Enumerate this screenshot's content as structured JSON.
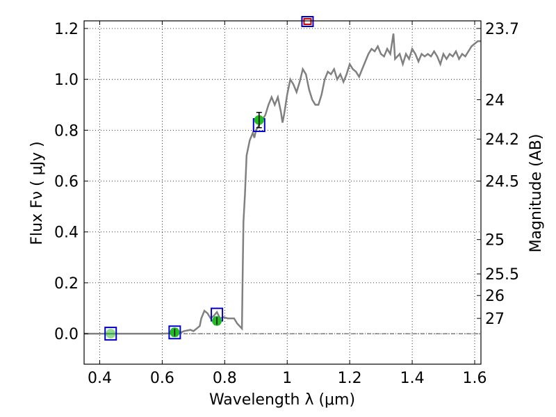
{
  "chart_data": {
    "type": "line",
    "xlabel": "Wavelength  λ (μm)",
    "ylabel": "Flux  Fν  ( μJy )",
    "y2label": "Magnitude (AB)",
    "xlim": [
      0.35,
      1.62
    ],
    "ylim": [
      -0.12,
      1.23
    ],
    "grid": true,
    "colors": {
      "spectrum": "#808080",
      "model_box": "#0000cc",
      "model_box_upper": "#cc0000",
      "observed": "#22bb22",
      "zero_line": "#000000"
    },
    "x_ticks": [
      {
        "value": 0.4,
        "label": "0.4"
      },
      {
        "value": 0.6,
        "label": "0.6"
      },
      {
        "value": 0.8,
        "label": "0.8"
      },
      {
        "value": 1.0,
        "label": "1"
      },
      {
        "value": 1.2,
        "label": "1.2"
      },
      {
        "value": 1.4,
        "label": "1.4"
      },
      {
        "value": 1.6,
        "label": "1.6"
      }
    ],
    "y_ticks": [
      {
        "value": 0.0,
        "label": "0.0"
      },
      {
        "value": 0.2,
        "label": "0.2"
      },
      {
        "value": 0.4,
        "label": "0.4"
      },
      {
        "value": 0.6,
        "label": "0.6"
      },
      {
        "value": 0.8,
        "label": "0.8"
      },
      {
        "value": 1.0,
        "label": "1.0"
      },
      {
        "value": 1.2,
        "label": "1.2"
      }
    ],
    "y2_ticks": [
      {
        "flux": 1.2,
        "label": "23.7"
      },
      {
        "flux": 0.92,
        "label": "24"
      },
      {
        "flux": 0.765,
        "label": "24.2"
      },
      {
        "flux": 0.6,
        "label": "24.5"
      },
      {
        "flux": 0.37,
        "label": "25"
      },
      {
        "flux": 0.235,
        "label": "25.5"
      },
      {
        "flux": 0.15,
        "label": "26"
      },
      {
        "flux": 0.06,
        "label": "27"
      }
    ],
    "series": [
      {
        "type": "line",
        "points": [
          [
            0.35,
            0.0
          ],
          [
            0.6,
            0.0
          ],
          [
            0.64,
            0.002
          ],
          [
            0.66,
            0.005
          ],
          [
            0.67,
            0.01
          ],
          [
            0.69,
            0.015
          ],
          [
            0.7,
            0.01
          ],
          [
            0.71,
            0.02
          ],
          [
            0.72,
            0.03
          ],
          [
            0.725,
            0.06
          ],
          [
            0.735,
            0.09
          ],
          [
            0.745,
            0.08
          ],
          [
            0.755,
            0.06
          ],
          [
            0.765,
            0.07
          ],
          [
            0.775,
            0.085
          ],
          [
            0.785,
            0.06
          ],
          [
            0.795,
            0.065
          ],
          [
            0.81,
            0.06
          ],
          [
            0.83,
            0.06
          ],
          [
            0.84,
            0.04
          ],
          [
            0.855,
            0.02
          ],
          [
            0.857,
            0.2
          ],
          [
            0.86,
            0.44
          ],
          [
            0.865,
            0.55
          ],
          [
            0.87,
            0.7
          ],
          [
            0.88,
            0.76
          ],
          [
            0.89,
            0.79
          ],
          [
            0.895,
            0.77
          ],
          [
            0.9,
            0.8
          ],
          [
            0.91,
            0.82
          ],
          [
            0.92,
            0.84
          ],
          [
            0.93,
            0.86
          ],
          [
            0.94,
            0.9
          ],
          [
            0.95,
            0.93
          ],
          [
            0.96,
            0.9
          ],
          [
            0.97,
            0.93
          ],
          [
            0.98,
            0.87
          ],
          [
            0.985,
            0.83
          ],
          [
            0.99,
            0.86
          ],
          [
            1.0,
            0.94
          ],
          [
            1.01,
            1.0
          ],
          [
            1.02,
            0.98
          ],
          [
            1.03,
            0.95
          ],
          [
            1.04,
            0.99
          ],
          [
            1.05,
            1.04
          ],
          [
            1.06,
            1.02
          ],
          [
            1.07,
            0.96
          ],
          [
            1.08,
            0.92
          ],
          [
            1.09,
            0.9
          ],
          [
            1.1,
            0.9
          ],
          [
            1.11,
            0.94
          ],
          [
            1.12,
            1.0
          ],
          [
            1.13,
            1.03
          ],
          [
            1.14,
            1.02
          ],
          [
            1.15,
            1.04
          ],
          [
            1.16,
            1.0
          ],
          [
            1.17,
            1.02
          ],
          [
            1.18,
            0.99
          ],
          [
            1.19,
            1.02
          ],
          [
            1.2,
            1.06
          ],
          [
            1.21,
            1.04
          ],
          [
            1.22,
            1.03
          ],
          [
            1.23,
            1.01
          ],
          [
            1.24,
            1.04
          ],
          [
            1.25,
            1.07
          ],
          [
            1.26,
            1.1
          ],
          [
            1.27,
            1.12
          ],
          [
            1.28,
            1.11
          ],
          [
            1.29,
            1.13
          ],
          [
            1.3,
            1.1
          ],
          [
            1.31,
            1.09
          ],
          [
            1.32,
            1.12
          ],
          [
            1.33,
            1.1
          ],
          [
            1.34,
            1.18
          ],
          [
            1.345,
            1.08
          ],
          [
            1.36,
            1.1
          ],
          [
            1.37,
            1.06
          ],
          [
            1.38,
            1.1
          ],
          [
            1.39,
            1.08
          ],
          [
            1.4,
            1.12
          ],
          [
            1.41,
            1.1
          ],
          [
            1.42,
            1.07
          ],
          [
            1.43,
            1.1
          ],
          [
            1.44,
            1.09
          ],
          [
            1.45,
            1.1
          ],
          [
            1.46,
            1.09
          ],
          [
            1.47,
            1.11
          ],
          [
            1.48,
            1.09
          ],
          [
            1.49,
            1.06
          ],
          [
            1.5,
            1.1
          ],
          [
            1.51,
            1.08
          ],
          [
            1.52,
            1.1
          ],
          [
            1.53,
            1.09
          ],
          [
            1.54,
            1.11
          ],
          [
            1.55,
            1.08
          ],
          [
            1.56,
            1.1
          ],
          [
            1.57,
            1.09
          ],
          [
            1.58,
            1.11
          ],
          [
            1.59,
            1.13
          ],
          [
            1.6,
            1.14
          ],
          [
            1.61,
            1.15
          ],
          [
            1.62,
            1.15
          ]
        ]
      },
      {
        "type": "model_boxes",
        "points": [
          {
            "x": 0.435,
            "y": 0.0
          },
          {
            "x": 0.64,
            "y": 0.005
          },
          {
            "x": 0.775,
            "y": 0.075
          },
          {
            "x": 0.91,
            "y": 0.82
          },
          {
            "x": 1.065,
            "y": 1.23
          }
        ]
      },
      {
        "type": "observed_points",
        "points": [
          {
            "x": 0.435,
            "y": 0.0,
            "err": 0.0
          },
          {
            "x": 0.64,
            "y": 0.005,
            "err": 0.015
          },
          {
            "x": 0.775,
            "y": 0.05,
            "err": 0.015
          },
          {
            "x": 0.91,
            "y": 0.84,
            "err": 0.03
          }
        ]
      }
    ]
  }
}
